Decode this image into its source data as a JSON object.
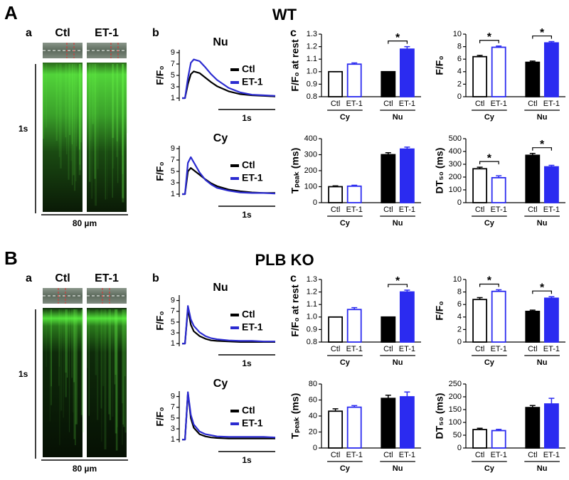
{
  "figure": {
    "sections": [
      {
        "letter": "A",
        "title": "WT",
        "a": {
          "label": "a",
          "images": [
            "Ctl",
            "ET-1"
          ],
          "time_scale": "1s",
          "space_scale": "80 µm"
        },
        "b_label": "b",
        "c_label": "c"
      },
      {
        "letter": "B",
        "title": "PLB KO",
        "a": {
          "label": "a",
          "images": [
            "Ctl",
            "ET-1"
          ],
          "time_scale": "1s",
          "space_scale": "80 µm"
        },
        "b_label": "b",
        "c_label": "c"
      }
    ]
  },
  "chart_data": [
    {
      "type": "line",
      "title": "Nu",
      "ylabel": "F/F₀",
      "scalebar": "1s",
      "x": [
        0,
        0.05,
        0.1,
        0.15,
        0.2,
        0.3,
        0.4,
        0.5,
        0.6,
        0.8,
        1.0,
        1.2,
        1.4,
        1.6
      ],
      "xlim": [
        0,
        1.6
      ],
      "ylim": [
        0.5,
        9.5
      ],
      "yticks": [
        1,
        3,
        5,
        7,
        9
      ],
      "series": [
        {
          "name": "Ctl",
          "color": "#000000",
          "values": [
            1,
            1,
            3.5,
            5.2,
            5.7,
            5.4,
            4.6,
            3.8,
            3.1,
            2.2,
            1.7,
            1.5,
            1.4,
            1.3
          ]
        },
        {
          "name": "ET-1",
          "color": "#2b2bd0",
          "values": [
            1,
            1,
            4.5,
            7.2,
            7.8,
            7.5,
            6.4,
            5.2,
            4.2,
            2.8,
            2.0,
            1.6,
            1.5,
            1.4
          ]
        }
      ]
    },
    {
      "type": "line",
      "title": "Cy",
      "ylabel": "F/F₀",
      "scalebar": "1s",
      "x": [
        0,
        0.05,
        0.1,
        0.15,
        0.2,
        0.3,
        0.4,
        0.5,
        0.6,
        0.8,
        1.0,
        1.2,
        1.4,
        1.6
      ],
      "xlim": [
        0,
        1.6
      ],
      "ylim": [
        0.5,
        9.5
      ],
      "yticks": [
        1,
        3,
        5,
        7,
        9
      ],
      "series": [
        {
          "name": "Ctl",
          "color": "#000000",
          "values": [
            1,
            1,
            5.0,
            5.6,
            5.2,
            4.4,
            3.6,
            2.9,
            2.4,
            1.8,
            1.5,
            1.3,
            1.2,
            1.2
          ]
        },
        {
          "name": "ET-1",
          "color": "#2b2bd0",
          "values": [
            1,
            1,
            6.5,
            7.5,
            6.6,
            4.8,
            3.5,
            2.7,
            2.1,
            1.6,
            1.3,
            1.2,
            1.2,
            1.1
          ]
        }
      ]
    },
    {
      "type": "bar",
      "ylabel": "F/F₀ at rest",
      "categories": [
        "Ctl",
        "ET-1",
        "Ctl",
        "ET-1"
      ],
      "groups": [
        "Cy",
        "Nu"
      ],
      "values": [
        1.0,
        1.06,
        1.0,
        1.18
      ],
      "errors": [
        0,
        0.01,
        0,
        0.02
      ],
      "colors": [
        "#ffffff",
        "#ffffff",
        "#000000",
        "#2b2bf0"
      ],
      "edgecolors": [
        "#000000",
        "#2b2bf0",
        "#000000",
        "#2b2bf0"
      ],
      "ylim": [
        0.8,
        1.3
      ],
      "yticks": [
        0.8,
        0.9,
        {
          "value": 1.0,
          "label": "1.0"
        },
        1.1,
        1.2,
        1.3
      ],
      "annotations": [
        {
          "label": "*",
          "group": "Nu"
        }
      ]
    },
    {
      "type": "bar",
      "ylabel": "F/F₀",
      "categories": [
        "Ctl",
        "ET-1",
        "Ctl",
        "ET-1"
      ],
      "groups": [
        "Cy",
        "Nu"
      ],
      "values": [
        6.4,
        7.9,
        5.5,
        8.6
      ],
      "errors": [
        0.2,
        0.2,
        0.2,
        0.2
      ],
      "colors": [
        "#ffffff",
        "#ffffff",
        "#000000",
        "#2b2bf0"
      ],
      "edgecolors": [
        "#000000",
        "#2b2bf0",
        "#000000",
        "#2b2bf0"
      ],
      "ylim": [
        0,
        10
      ],
      "yticks": [
        0,
        2,
        4,
        6,
        8,
        10
      ],
      "annotations": [
        {
          "label": "*",
          "group": "Cy"
        },
        {
          "label": "*",
          "group": "Nu"
        }
      ]
    },
    {
      "type": "bar",
      "ylabel": "Tₚₑₐₖ (ms)",
      "categories": [
        "Ctl",
        "ET-1",
        "Ctl",
        "ET-1"
      ],
      "groups": [
        "Cy",
        "Nu"
      ],
      "values": [
        100,
        103,
        300,
        335
      ],
      "errors": [
        5,
        6,
        12,
        12
      ],
      "colors": [
        "#ffffff",
        "#ffffff",
        "#000000",
        "#2b2bf0"
      ],
      "edgecolors": [
        "#000000",
        "#2b2bf0",
        "#000000",
        "#2b2bf0"
      ],
      "ylim": [
        0,
        400
      ],
      "yticks": [
        0,
        100,
        200,
        300,
        400
      ],
      "annotations": []
    },
    {
      "type": "bar",
      "ylabel": "DT₅₀ (ms)",
      "categories": [
        "Ctl",
        "ET-1",
        "Ctl",
        "ET-1"
      ],
      "groups": [
        "Cy",
        "Nu"
      ],
      "values": [
        265,
        195,
        370,
        280
      ],
      "errors": [
        12,
        15,
        15,
        12
      ],
      "colors": [
        "#ffffff",
        "#ffffff",
        "#000000",
        "#2b2bf0"
      ],
      "edgecolors": [
        "#000000",
        "#2b2bf0",
        "#000000",
        "#2b2bf0"
      ],
      "ylim": [
        0,
        500
      ],
      "yticks": [
        0,
        100,
        200,
        300,
        400,
        500
      ],
      "annotations": [
        {
          "label": "*",
          "group": "Cy"
        },
        {
          "label": "*",
          "group": "Nu"
        }
      ]
    },
    {
      "type": "line",
      "title": "Nu",
      "ylabel": "F/F₀",
      "scalebar": "1s",
      "x": [
        0,
        0.05,
        0.1,
        0.15,
        0.2,
        0.3,
        0.4,
        0.5,
        0.6,
        0.8,
        1.0,
        1.2,
        1.4,
        1.6
      ],
      "xlim": [
        0,
        1.6
      ],
      "ylim": [
        0.5,
        10
      ],
      "yticks": [
        1,
        3,
        5,
        7,
        9
      ],
      "series": [
        {
          "name": "Ctl",
          "color": "#000000",
          "values": [
            1,
            1,
            7.5,
            4.5,
            3.3,
            2.4,
            1.9,
            1.6,
            1.5,
            1.4,
            1.3,
            1.3,
            1.3,
            1.3
          ]
        },
        {
          "name": "ET-1",
          "color": "#2b2bd0",
          "values": [
            1,
            1,
            8.0,
            5.5,
            4.3,
            3.1,
            2.4,
            2.0,
            1.8,
            1.6,
            1.5,
            1.5,
            1.4,
            1.4
          ]
        }
      ]
    },
    {
      "type": "line",
      "title": "Cy",
      "ylabel": "F/F₀",
      "scalebar": "1s",
      "x": [
        0,
        0.05,
        0.1,
        0.15,
        0.2,
        0.3,
        0.4,
        0.5,
        0.6,
        0.8,
        1.0,
        1.2,
        1.4,
        1.6
      ],
      "xlim": [
        0,
        1.6
      ],
      "ylim": [
        0.5,
        10
      ],
      "yticks": [
        1,
        3,
        5,
        7,
        9
      ],
      "series": [
        {
          "name": "Ctl",
          "color": "#000000",
          "values": [
            1,
            1,
            9.7,
            5.0,
            3.2,
            2.0,
            1.6,
            1.4,
            1.3,
            1.2,
            1.2,
            1.2,
            1.2,
            1.2
          ]
        },
        {
          "name": "ET-1",
          "color": "#2b2bd0",
          "values": [
            1,
            1,
            9.8,
            5.6,
            3.8,
            2.5,
            2.0,
            1.8,
            1.6,
            1.5,
            1.5,
            1.5,
            1.5,
            1.4
          ]
        }
      ]
    },
    {
      "type": "bar",
      "ylabel": "F/F₀ at rest",
      "categories": [
        "Ctl",
        "ET-1",
        "Ctl",
        "ET-1"
      ],
      "groups": [
        "Cy",
        "Nu"
      ],
      "values": [
        1.0,
        1.06,
        1.0,
        1.2
      ],
      "errors": [
        0,
        0.015,
        0,
        0.015
      ],
      "colors": [
        "#ffffff",
        "#ffffff",
        "#000000",
        "#2b2bf0"
      ],
      "edgecolors": [
        "#000000",
        "#2b2bf0",
        "#000000",
        "#2b2bf0"
      ],
      "ylim": [
        0.8,
        1.3
      ],
      "yticks": [
        0.8,
        0.9,
        {
          "value": 1.0,
          "label": "1.0"
        },
        1.1,
        1.2,
        1.3
      ],
      "annotations": [
        {
          "label": "*",
          "group": "Nu"
        }
      ]
    },
    {
      "type": "bar",
      "ylabel": "F/F₀",
      "categories": [
        "Ctl",
        "ET-1",
        "Ctl",
        "ET-1"
      ],
      "groups": [
        "Cy",
        "Nu"
      ],
      "values": [
        6.8,
        8.1,
        4.9,
        7.0
      ],
      "errors": [
        0.3,
        0.25,
        0.2,
        0.25
      ],
      "colors": [
        "#ffffff",
        "#ffffff",
        "#000000",
        "#2b2bf0"
      ],
      "edgecolors": [
        "#000000",
        "#2b2bf0",
        "#000000",
        "#2b2bf0"
      ],
      "ylim": [
        0,
        10
      ],
      "yticks": [
        0,
        2,
        4,
        6,
        8,
        10
      ],
      "annotations": [
        {
          "label": "*",
          "group": "Cy"
        },
        {
          "label": "*",
          "group": "Nu"
        }
      ]
    },
    {
      "type": "bar",
      "ylabel": "Tₚₑₐₖ (ms)",
      "categories": [
        "Ctl",
        "ET-1",
        "Ctl",
        "ET-1"
      ],
      "groups": [
        "Cy",
        "Nu"
      ],
      "values": [
        46,
        51,
        62,
        64
      ],
      "errors": [
        3,
        2,
        4,
        6
      ],
      "colors": [
        "#ffffff",
        "#ffffff",
        "#000000",
        "#2b2bf0"
      ],
      "edgecolors": [
        "#000000",
        "#2b2bf0",
        "#000000",
        "#2b2bf0"
      ],
      "ylim": [
        0,
        80
      ],
      "yticks": [
        0,
        20,
        40,
        60,
        80
      ],
      "annotations": []
    },
    {
      "type": "bar",
      "ylabel": "DT₅₀ (ms)",
      "categories": [
        "Ctl",
        "ET-1",
        "Ctl",
        "ET-1"
      ],
      "groups": [
        "Cy",
        "Nu"
      ],
      "values": [
        72,
        68,
        158,
        172
      ],
      "errors": [
        5,
        5,
        8,
        22
      ],
      "colors": [
        "#ffffff",
        "#ffffff",
        "#000000",
        "#2b2bf0"
      ],
      "edgecolors": [
        "#000000",
        "#2b2bf0",
        "#000000",
        "#2b2bf0"
      ],
      "ylim": [
        0,
        250
      ],
      "yticks": [
        0,
        50,
        100,
        150,
        200,
        250
      ],
      "annotations": []
    }
  ]
}
